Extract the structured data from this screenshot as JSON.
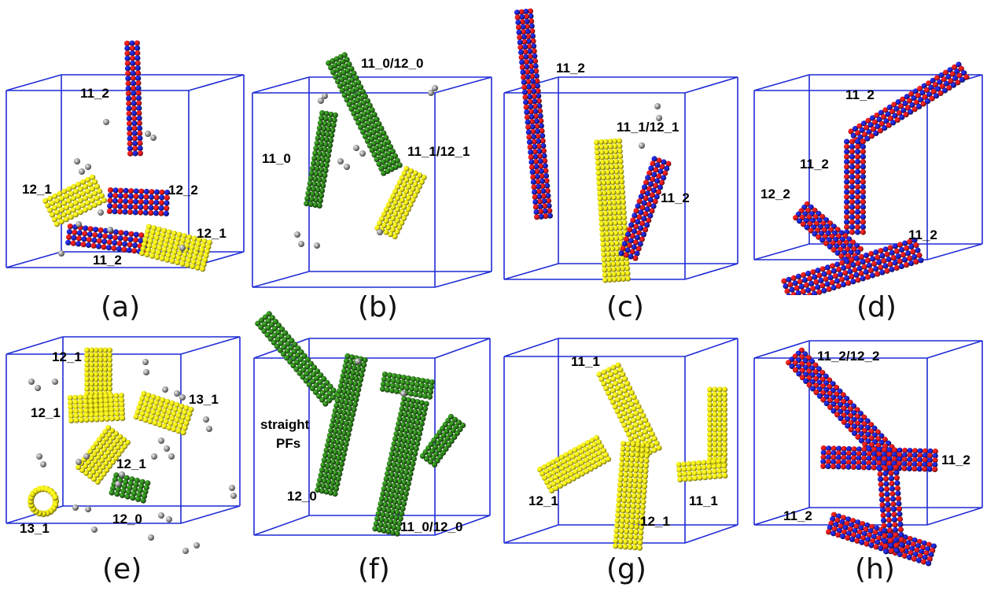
{
  "colors": {
    "box": "#1f2bd6",
    "red": "#e31a1a",
    "blue": "#1b22c8",
    "green": "#2e7d1d",
    "yellow": "#f2ea1a",
    "ion": "#9a9a9a"
  },
  "panels": [
    {
      "id": "a",
      "caption": "(a)",
      "labels": [
        "11_2",
        "12_1",
        "12_2",
        "12_1",
        "11_2"
      ]
    },
    {
      "id": "b",
      "caption": "(b)",
      "labels": [
        "11_0/12_0",
        "11_0",
        "11_1/12_1"
      ]
    },
    {
      "id": "c",
      "caption": "(c)",
      "labels": [
        "11_2",
        "11_1/12_1",
        "11_2"
      ]
    },
    {
      "id": "d",
      "caption": "(d)",
      "labels": [
        "11_2",
        "11_2",
        "12_2",
        "11_2"
      ]
    },
    {
      "id": "e",
      "caption": "(e)",
      "labels": [
        "12_1",
        "12_1",
        "13_1",
        "12_1",
        "13_1",
        "12_0"
      ]
    },
    {
      "id": "f",
      "caption": "(f)",
      "labels": [
        "straight",
        "PFs",
        "12_0",
        "11_0/12_0"
      ]
    },
    {
      "id": "g",
      "caption": "(g)",
      "labels": [
        "11_1",
        "12_1",
        "12_1",
        "11_1"
      ]
    },
    {
      "id": "h",
      "caption": "(h)",
      "labels": [
        "11_2/12_2",
        "11_2",
        "11_2"
      ]
    }
  ]
}
